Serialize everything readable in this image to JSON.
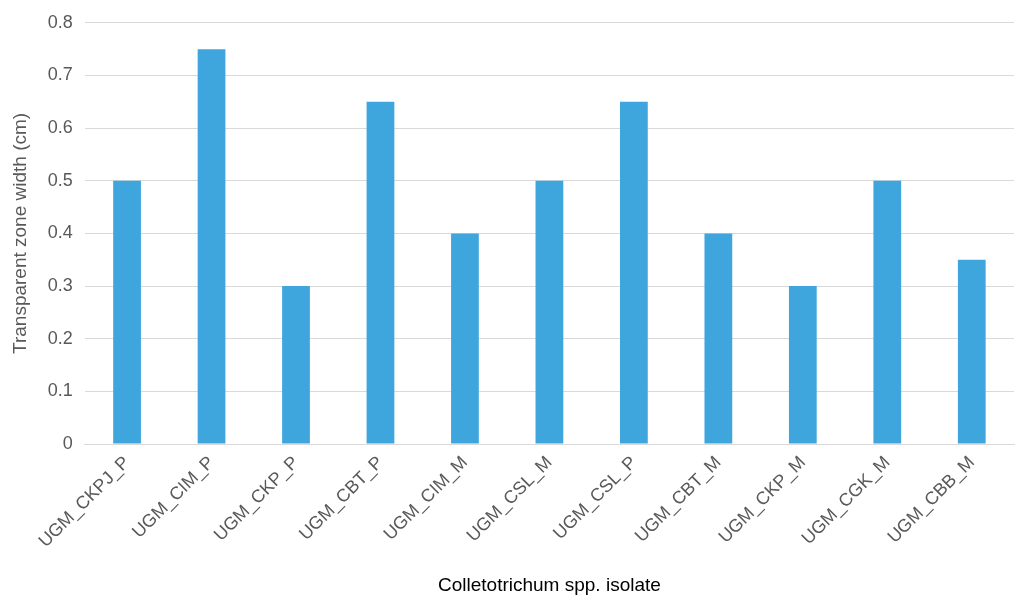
{
  "chart_data": {
    "type": "bar",
    "xlabel": "Colletotrichum spp. isolate",
    "ylabel": "Transparent zone width (cm)",
    "categories": [
      "UGM_CKPJ_P",
      "UGM_CIM_P",
      "UGM_CKP_P",
      "UGM_CBT_P",
      "UGM_CIM_M",
      "UGM_CSL_M",
      "UGM_CSL_P",
      "UGM_CBT_M",
      "UGM_CKP_M",
      "UGM_CGK_M",
      "UGM_CBB_M"
    ],
    "values": [
      0.5,
      0.75,
      0.3,
      0.65,
      0.4,
      0.5,
      0.65,
      0.4,
      0.3,
      0.5,
      0.35
    ],
    "color": "#3ea6dd",
    "ylim": [
      0,
      0.8
    ],
    "yticks": [
      0,
      0.1,
      0.2,
      0.3,
      0.4,
      0.5,
      0.6,
      0.7,
      0.8
    ],
    "grid": "y"
  }
}
